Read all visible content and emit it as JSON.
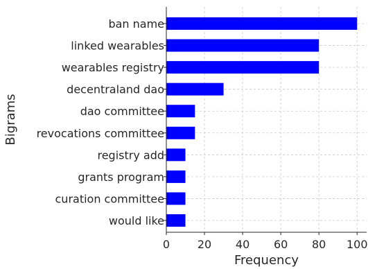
{
  "chart_data": {
    "type": "bar",
    "orientation": "horizontal",
    "categories": [
      "ban name",
      "linked wearables",
      "wearables registry",
      "decentraland dao",
      "dao committee",
      "revocations committee",
      "registry add",
      "grants program",
      "curation committee",
      "would like"
    ],
    "values": [
      100,
      80,
      80,
      30,
      15,
      15,
      10,
      10,
      10,
      10
    ],
    "xlabel": "Frequency",
    "ylabel": "Bigrams",
    "xlim": [
      0,
      105
    ],
    "xticks": [
      "0",
      "20",
      "40",
      "60",
      "80",
      "100"
    ],
    "grid": true,
    "bar_color": "#0000ff"
  }
}
